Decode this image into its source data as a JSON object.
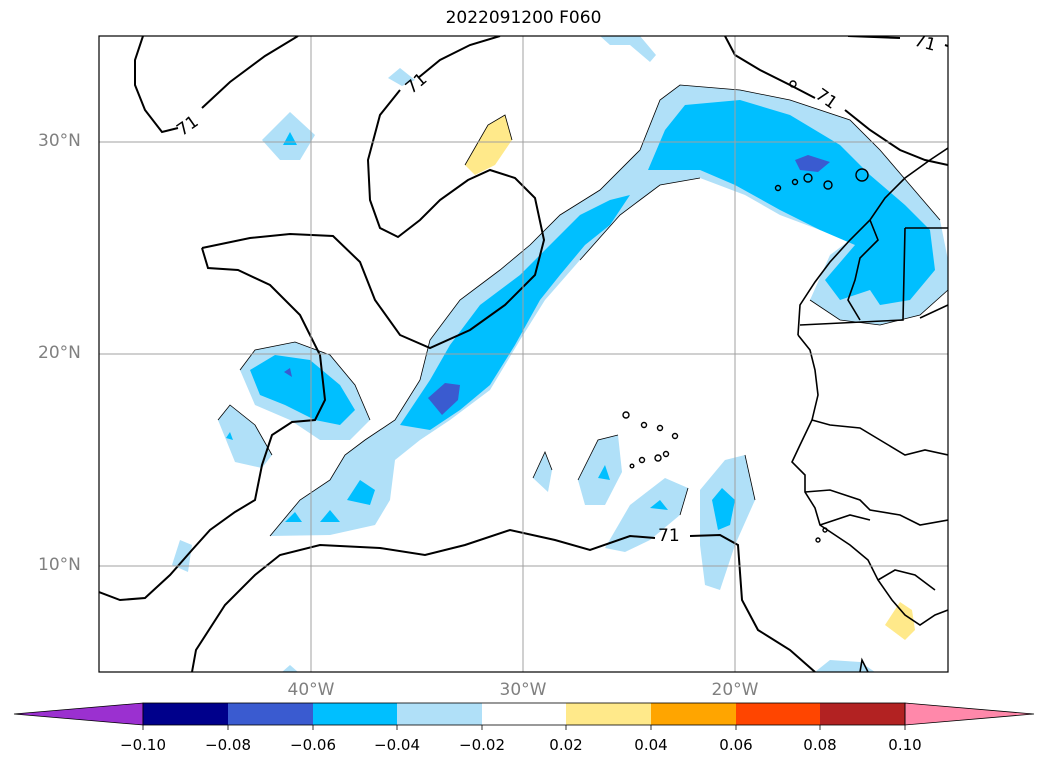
{
  "title": "2022091200 F060",
  "map": {
    "lat_labels": [
      "30°N",
      "20°N",
      "10°N"
    ],
    "lon_labels": [
      "40°W",
      "30°W",
      "20°W"
    ],
    "contour_label": "71"
  },
  "colorbar": {
    "ticks": [
      "−0.10",
      "−0.08",
      "−0.06",
      "−0.04",
      "−0.02",
      "0.02",
      "0.04",
      "0.06",
      "0.08",
      "0.10"
    ],
    "colors": {
      "below": "#9b30d0",
      "c1": "#00008b",
      "c2": "#3a5bd0",
      "c3": "#00bfff",
      "c4": "#b0e0f8",
      "c5": "#ffffff",
      "c6": "#ffe98a",
      "c7": "#ffa500",
      "c8": "#ff4500",
      "c9": "#b22222",
      "above": "#ff88aa"
    }
  }
}
